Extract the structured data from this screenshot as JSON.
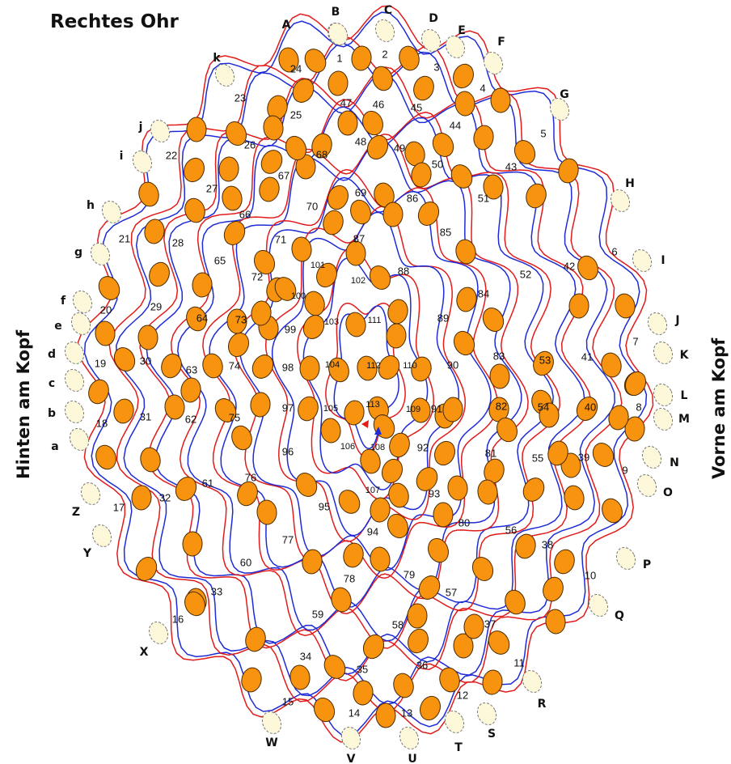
{
  "title": "Rechtes Ohr",
  "side_left": "Hinten am Kopf",
  "side_right": "Vorne am Kopf",
  "position_labels": [
    "A",
    "B",
    "C",
    "D",
    "E",
    "F",
    "G",
    "H",
    "I",
    "J",
    "K",
    "L",
    "M",
    "N",
    "O",
    "P",
    "Q",
    "R",
    "S",
    "T",
    "U",
    "V",
    "W",
    "X",
    "Y",
    "Z",
    "a",
    "b",
    "c",
    "d",
    "e",
    "f",
    "g",
    "h",
    "i",
    "j",
    "k"
  ],
  "node_count": 113,
  "colors": {
    "bead": "#f7930e",
    "ghost": "#fdf8d9",
    "wire_red": "#e21b1b",
    "wire_blue": "#1e2bd6"
  }
}
